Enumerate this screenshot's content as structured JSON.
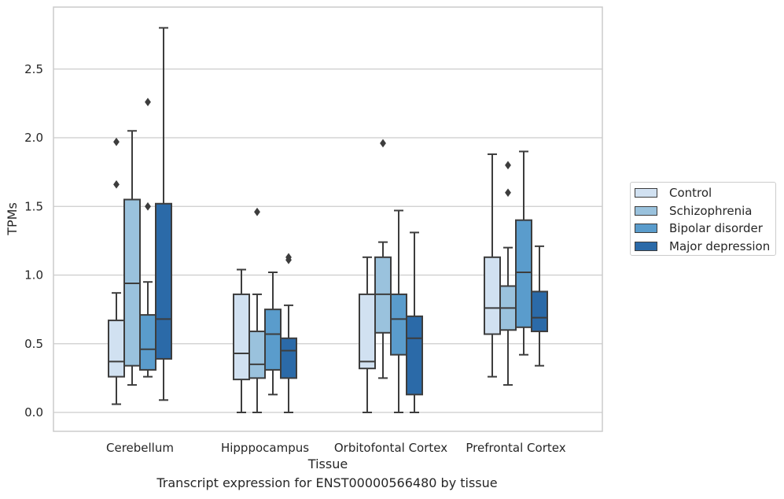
{
  "chart_data": {
    "type": "box",
    "title": "",
    "caption": "Transcript expression for ENST00000566480 by tissue",
    "xlabel": "Tissue",
    "ylabel": "TPMs",
    "ylim": [
      -0.13,
      2.95
    ],
    "yticks": [
      "0.0",
      "0.5",
      "1.0",
      "1.5",
      "2.0",
      "2.5"
    ],
    "ytick_values": [
      0,
      0.5,
      1.0,
      1.5,
      2.0,
      2.5
    ],
    "grid": true,
    "legend_position": "right",
    "categories": [
      "Cerebellum",
      "Hipppocampus",
      "Orbitofontal Cortex",
      "Prefrontal Cortex"
    ],
    "series": [
      {
        "name": "Control",
        "color": "#d1e1f1",
        "boxes": [
          {
            "whislo": 0.06,
            "q1": 0.26,
            "med": 0.37,
            "q3": 0.67,
            "whishi": 0.87,
            "fliers": [
              1.66,
              1.97
            ]
          },
          {
            "whislo": 0.0,
            "q1": 0.24,
            "med": 0.43,
            "q3": 0.86,
            "whishi": 1.04,
            "fliers": []
          },
          {
            "whislo": 0.0,
            "q1": 0.32,
            "med": 0.37,
            "q3": 0.86,
            "whishi": 1.13,
            "fliers": []
          },
          {
            "whislo": 0.26,
            "q1": 0.57,
            "med": 0.76,
            "q3": 1.13,
            "whishi": 1.88,
            "fliers": []
          }
        ]
      },
      {
        "name": "Schizophrenia",
        "color": "#9ac2dd",
        "boxes": [
          {
            "whislo": 0.2,
            "q1": 0.34,
            "med": 0.94,
            "q3": 1.55,
            "whishi": 2.05,
            "fliers": []
          },
          {
            "whislo": 0.0,
            "q1": 0.25,
            "med": 0.35,
            "q3": 0.59,
            "whishi": 0.86,
            "fliers": [
              1.46
            ]
          },
          {
            "whislo": 0.25,
            "q1": 0.58,
            "med": 0.86,
            "q3": 1.13,
            "whishi": 1.24,
            "fliers": [
              1.96
            ]
          },
          {
            "whislo": 0.2,
            "q1": 0.6,
            "med": 0.76,
            "q3": 0.92,
            "whishi": 1.2,
            "fliers": [
              1.6,
              1.8
            ]
          }
        ]
      },
      {
        "name": "Bipolar disorder",
        "color": "#5a9ccc",
        "boxes": [
          {
            "whislo": 0.26,
            "q1": 0.31,
            "med": 0.46,
            "q3": 0.71,
            "whishi": 0.95,
            "fliers": [
              1.5,
              2.26
            ]
          },
          {
            "whislo": 0.13,
            "q1": 0.31,
            "med": 0.57,
            "q3": 0.75,
            "whishi": 1.02,
            "fliers": []
          },
          {
            "whislo": 0.0,
            "q1": 0.42,
            "med": 0.68,
            "q3": 0.86,
            "whishi": 1.47,
            "fliers": []
          },
          {
            "whislo": 0.42,
            "q1": 0.62,
            "med": 1.02,
            "q3": 1.4,
            "whishi": 1.9,
            "fliers": []
          }
        ]
      },
      {
        "name": "Major depression",
        "color": "#2b6aa8",
        "boxes": [
          {
            "whislo": 0.09,
            "q1": 0.39,
            "med": 0.68,
            "q3": 1.52,
            "whishi": 2.8,
            "fliers": []
          },
          {
            "whislo": 0.0,
            "q1": 0.25,
            "med": 0.45,
            "q3": 0.54,
            "whishi": 0.78,
            "fliers": [
              1.11,
              1.13
            ]
          },
          {
            "whislo": 0.0,
            "q1": 0.13,
            "med": 0.54,
            "q3": 0.7,
            "whishi": 1.31,
            "fliers": []
          },
          {
            "whislo": 0.34,
            "q1": 0.59,
            "med": 0.69,
            "q3": 0.88,
            "whishi": 1.21,
            "fliers": []
          }
        ]
      }
    ]
  }
}
